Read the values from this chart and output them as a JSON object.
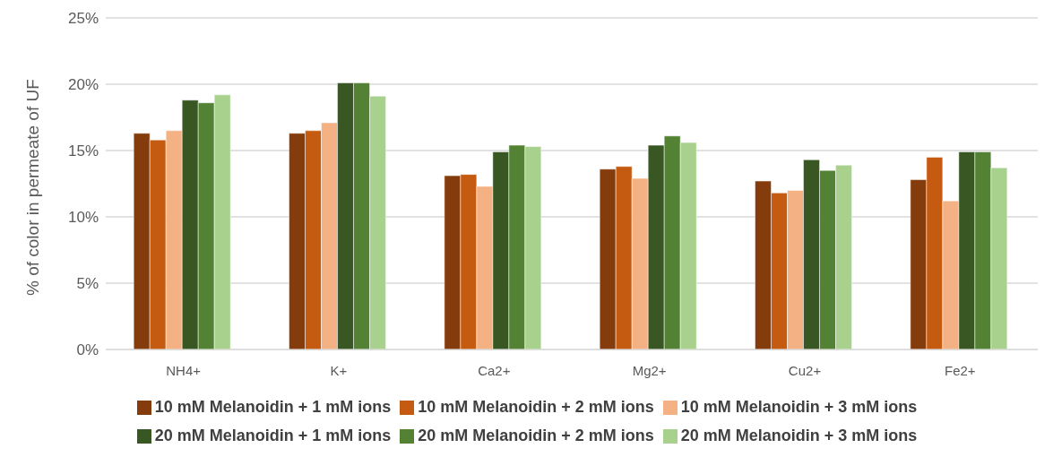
{
  "chart_data": {
    "type": "bar",
    "ylabel": "% of color in permeate of UF",
    "categories": [
      "NH4+",
      "K+",
      "Ca2+",
      "Mg2+",
      "Cu2+",
      "Fe2+"
    ],
    "series": [
      {
        "name": "10 mM Melanoidin + 1 mM ions",
        "color": "#843c0c",
        "values": [
          16.3,
          16.3,
          13.1,
          13.6,
          12.7,
          12.8
        ]
      },
      {
        "name": "10 mM Melanoidin + 2 mM ions",
        "color": "#c55a11",
        "values": [
          15.8,
          16.5,
          13.2,
          13.8,
          11.8,
          14.5
        ]
      },
      {
        "name": "10 mM Melanoidin + 3 mM ions",
        "color": "#f4b183",
        "values": [
          16.5,
          17.1,
          12.3,
          12.9,
          12.0,
          11.2
        ]
      },
      {
        "name": "20 mM Melanoidin + 1 mM ions",
        "color": "#385723",
        "values": [
          18.8,
          20.1,
          14.9,
          15.4,
          14.3,
          14.9
        ]
      },
      {
        "name": "20 mM Melanoidin + 2 mM ions",
        "color": "#548235",
        "values": [
          18.6,
          20.1,
          15.4,
          16.1,
          13.5,
          14.9
        ]
      },
      {
        "name": "20 mM Melanoidin + 3 mM ions",
        "color": "#a9d18e",
        "values": [
          19.2,
          19.1,
          15.3,
          15.6,
          13.9,
          13.7
        ]
      }
    ],
    "ylim": [
      0,
      25
    ],
    "yticks": [
      {
        "value": 0,
        "label": "0%"
      },
      {
        "value": 5,
        "label": "5%"
      },
      {
        "value": 10,
        "label": "10%"
      },
      {
        "value": 15,
        "label": "15%"
      },
      {
        "value": 20,
        "label": "20%"
      },
      {
        "value": 25,
        "label": "25%"
      }
    ],
    "grid": "y",
    "legend": "bottom"
  }
}
